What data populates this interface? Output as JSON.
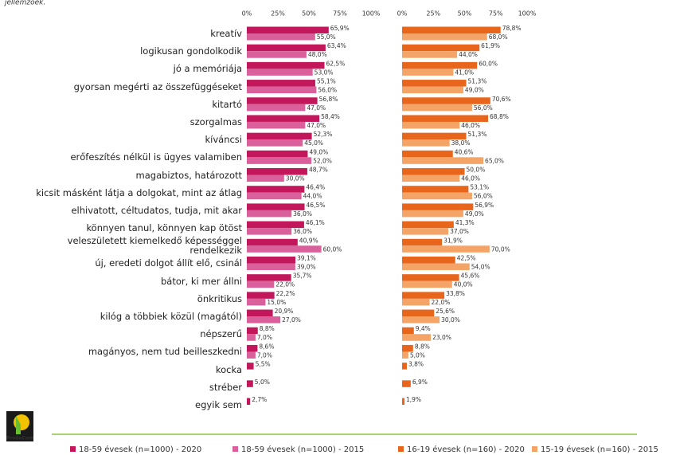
{
  "subtitle": "jellemzőek.",
  "logo": "ProdoCom",
  "chart_data": {
    "type": "bar",
    "orientation": "horizontal",
    "categories": [
      "kreatív",
      "logikusan gondolkodik",
      "jó a memóriája",
      "gyorsan megérti az összefüggéseket",
      "kitartó",
      "szorgalmas",
      "kíváncsi",
      "erőfeszítés nélkül is ügyes valamiben",
      "magabiztos, határozott",
      "kicsit másként látja a dolgokat, mint az átlag",
      "elhivatott, céltudatos, tudja, mit akar",
      "könnyen tanul, könnyen kap ötöst",
      "veleszületett kiemelkedő képességgel\nrendelkezik",
      "új, eredeti dolgot állít elő, csinál",
      "bátor, ki mer állni",
      "önkritikus",
      "kilóg a többiek közül (magától)",
      "népszerű",
      "magányos, nem tud beilleszkedni",
      "kocka",
      "stréber",
      "egyik sem"
    ],
    "xlim": [
      0,
      100
    ],
    "xticks": [
      {
        "value": 0,
        "label": "0%"
      },
      {
        "value": 25,
        "label": "25%"
      },
      {
        "value": 50,
        "label": "50%"
      },
      {
        "value": 75,
        "label": "75%"
      },
      {
        "value": 100,
        "label": "100%"
      }
    ],
    "x2lim": [
      0,
      100
    ],
    "x2ticks": [
      {
        "value": 0,
        "label": "0%"
      },
      {
        "value": 25,
        "label": "25%"
      },
      {
        "value": 50,
        "label": "50%"
      },
      {
        "value": 75,
        "label": "75%"
      },
      {
        "value": 100,
        "label": "100%"
      }
    ],
    "series": [
      {
        "name": "18-59 évesek (n=1000) - 2020",
        "color": "#c2185b",
        "values": [
          65.9,
          63.4,
          62.5,
          55.1,
          56.8,
          58.4,
          52.3,
          49.0,
          48.7,
          46.4,
          46.5,
          46.1,
          40.9,
          39.1,
          35.7,
          22.2,
          20.9,
          8.8,
          8.6,
          5.5,
          5.0,
          2.7
        ],
        "value_labels": [
          "65,9%",
          "63,4%",
          "62,5%",
          "55,1%",
          "56,8%",
          "58,4%",
          "52,3%",
          "49,0%",
          "48,7%",
          "46,4%",
          "46,5%",
          "46,1%",
          "40,9%",
          "39,1%",
          "35,7%",
          "22,2%",
          "20,9%",
          "8,8%",
          "8,6%",
          "5,5%",
          "5,0%",
          "2,7%"
        ]
      },
      {
        "name": "18-59 évesek (n=1000) - 2015",
        "color": "#d9609a",
        "values": [
          55.0,
          48.0,
          53.0,
          56.0,
          47.0,
          47.0,
          45.0,
          52.0,
          30.0,
          44.0,
          36.0,
          36.0,
          60.0,
          39.0,
          22.0,
          15.0,
          27.0,
          7.0,
          7.0,
          null,
          null,
          null
        ],
        "value_labels": [
          "55,0%",
          "48,0%",
          "53,0%",
          "56,0%",
          "47,0%",
          "47,0%",
          "45,0%",
          "52,0%",
          "30,0%",
          "44,0%",
          "36,0%",
          "36,0%",
          "60,0%",
          "39,0%",
          "22,0%",
          "15,0%",
          "27,0%",
          "7,0%",
          "7,0%",
          null,
          null,
          null
        ]
      },
      {
        "name": "16-19 évesek (n=160) - 2020",
        "color": "#e8651c",
        "axis": "x2",
        "values": [
          78.8,
          61.9,
          60.0,
          51.3,
          70.6,
          68.8,
          51.3,
          40.6,
          50.0,
          53.1,
          56.9,
          41.3,
          31.9,
          42.5,
          45.6,
          33.8,
          25.6,
          9.4,
          8.8,
          3.8,
          6.9,
          1.9
        ],
        "value_labels": [
          "78,8%",
          "61,9%",
          "60,0%",
          "51,3%",
          "70,6%",
          "68,8%",
          "51,3%",
          "40,6%",
          "50,0%",
          "53,1%",
          "56,9%",
          "41,3%",
          "31,9%",
          "42,5%",
          "45,6%",
          "33,8%",
          "25,6%",
          "9,4%",
          "8,8%",
          "3,8%",
          "6,9%",
          "1,9%"
        ]
      },
      {
        "name": "15-19 évesek (n=160) - 2015",
        "color": "#f5a468",
        "axis": "x2",
        "values": [
          68.0,
          44.0,
          41.0,
          49.0,
          56.0,
          46.0,
          38.0,
          65.0,
          46.0,
          56.0,
          49.0,
          37.0,
          70.0,
          54.0,
          40.0,
          22.0,
          30.0,
          23.0,
          5.0,
          null,
          null,
          null
        ],
        "value_labels": [
          "68,0%",
          "44,0%",
          "41,0%",
          "49,0%",
          "56,0%",
          "46,0%",
          "38,0%",
          "65,0%",
          "46,0%",
          "56,0%",
          "49,0%",
          "37,0%",
          "70,0%",
          "54,0%",
          "40,0%",
          "22,0%",
          "30,0%",
          "23,0%",
          "5,0%",
          null,
          null,
          null
        ]
      }
    ]
  }
}
